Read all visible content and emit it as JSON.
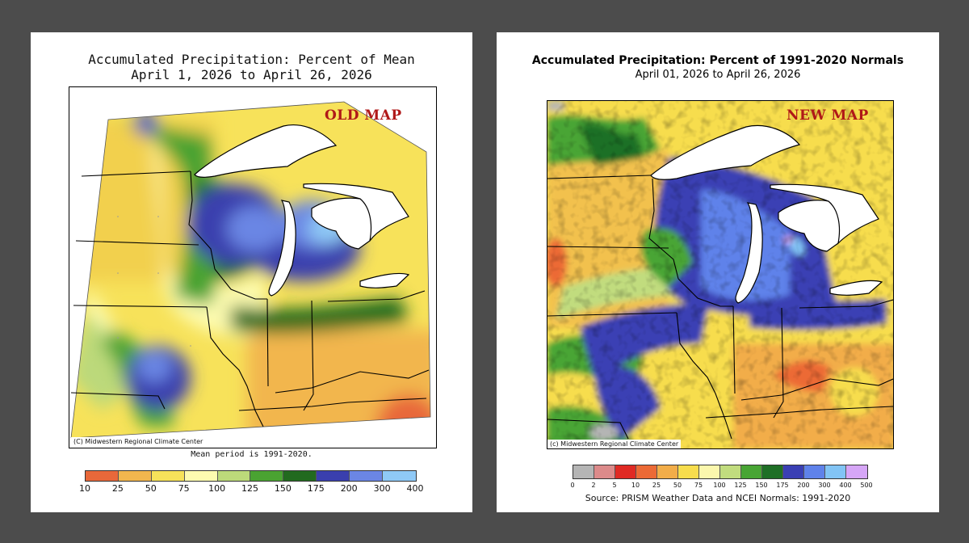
{
  "old_map": {
    "title_line1": "Accumulated Precipitation: Percent of Mean",
    "title_line2": "April 1, 2026 to April 26, 2026",
    "stamp": "OLD MAP",
    "credit": "(C) Midwestern Regional Climate Center",
    "note": "Mean period is 1991-2020.",
    "legend": {
      "colors": [
        "#e8683a",
        "#f2b64e",
        "#f7e25a",
        "#fdfbb0",
        "#bcd97a",
        "#4aa332",
        "#226a1f",
        "#3a3fae",
        "#6b86e4",
        "#8fc9f6"
      ],
      "ticks": [
        "10",
        "25",
        "50",
        "75",
        "100",
        "125",
        "150",
        "175",
        "200",
        "300",
        "400"
      ]
    }
  },
  "new_map": {
    "title_line1": "Accumulated Precipitation: Percent of 1991-2020 Normals",
    "title_line2": "April 01, 2026 to April 26, 2026",
    "stamp": "NEW MAP",
    "credit": "(c) Midwestern Regional Climate Center",
    "source": "Source: PRISM Weather Data and NCEI Normals: 1991-2020",
    "legend": {
      "colors": [
        "#b5b5b5",
        "#dc8a8a",
        "#e02a24",
        "#ec6a36",
        "#f2ad49",
        "#f7dd4d",
        "#fbf7ad",
        "#c1dc7e",
        "#48a534",
        "#1f6f26",
        "#3a3fb4",
        "#5f82ea",
        "#82c4f5",
        "#d6a6f7"
      ],
      "ticks": [
        "0",
        "2",
        "5",
        "10",
        "25",
        "50",
        "75",
        "100",
        "125",
        "150",
        "175",
        "200",
        "300",
        "400",
        "500"
      ]
    }
  }
}
